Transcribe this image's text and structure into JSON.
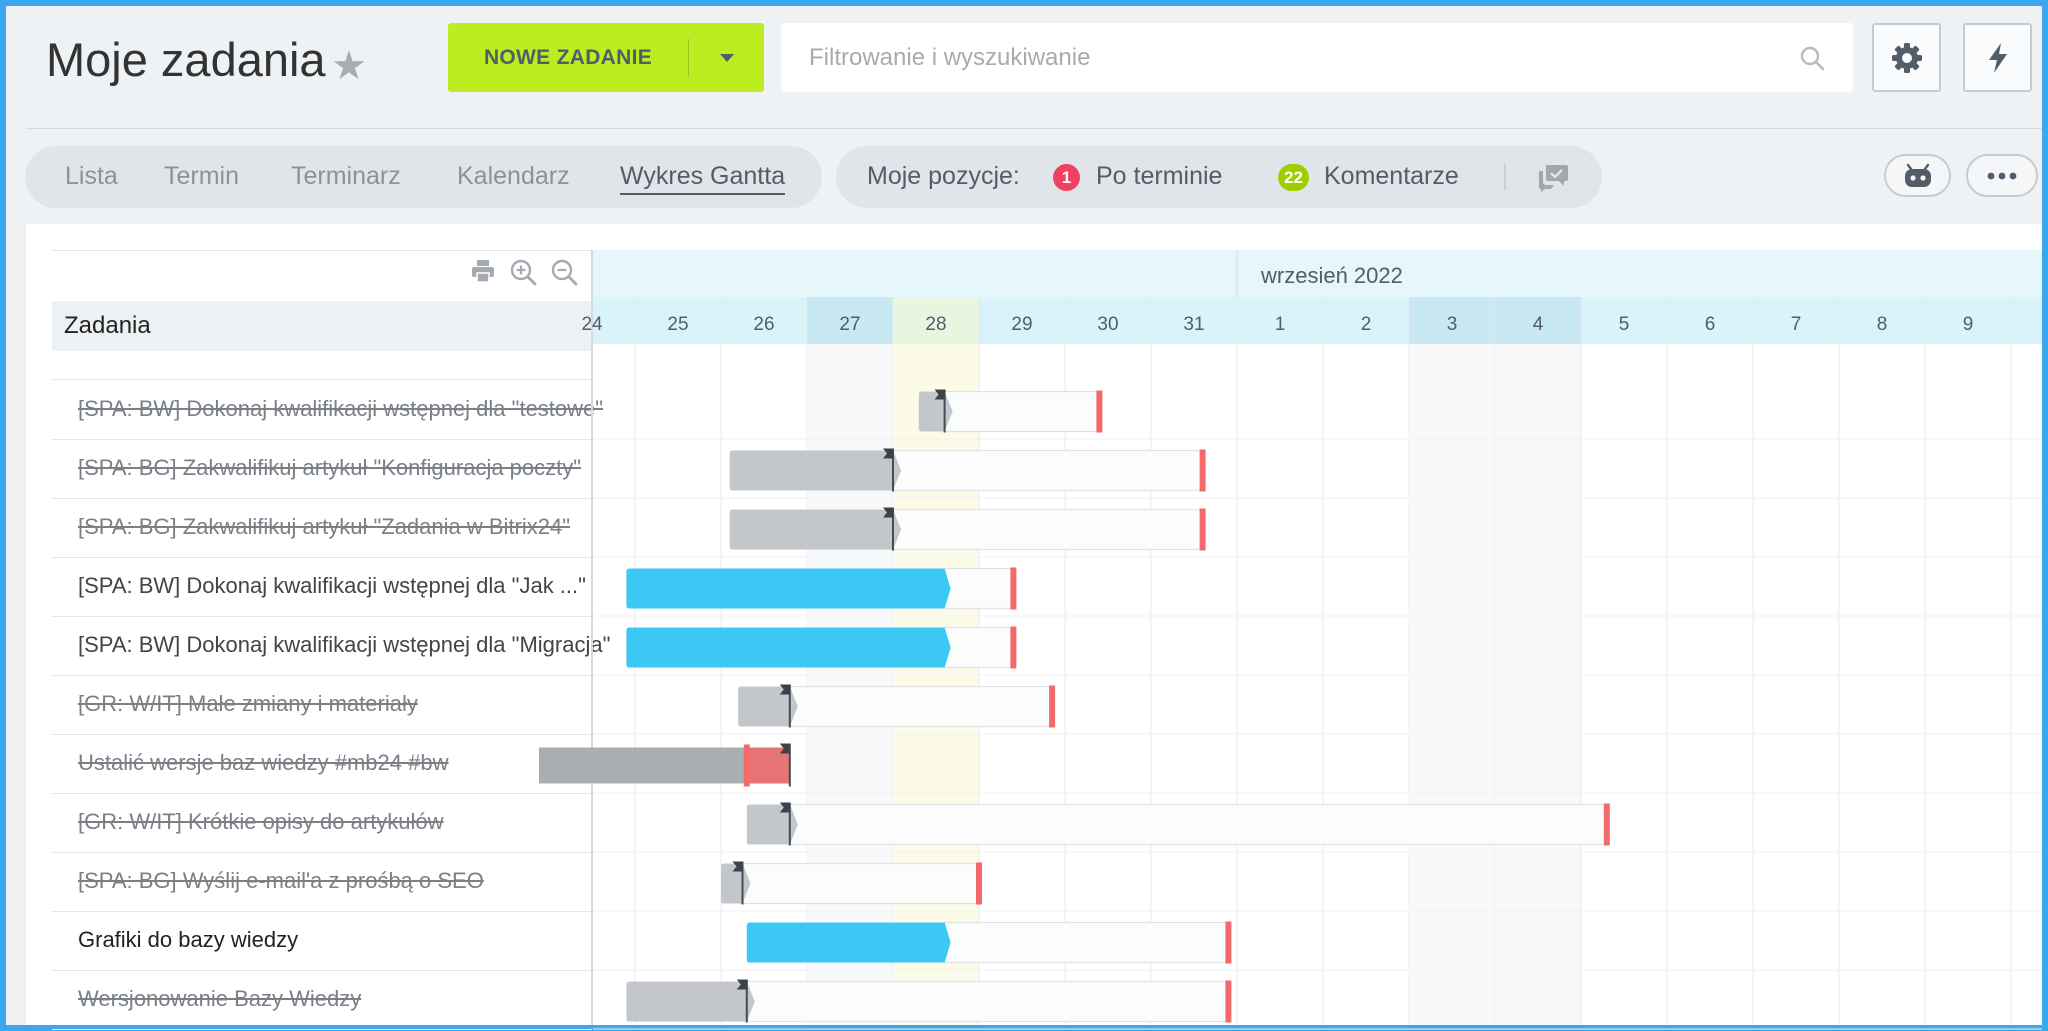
{
  "header": {
    "title": "Moje zadania",
    "new_task_label": "NOWE ZADANIE",
    "search_placeholder": "Filtrowanie i wyszukiwanie"
  },
  "views": {
    "tabs": [
      {
        "label": "Lista",
        "active": false
      },
      {
        "label": "Termin",
        "active": false
      },
      {
        "label": "Terminarz",
        "active": false
      },
      {
        "label": "Kalendarz",
        "active": false
      },
      {
        "label": "Wykres Gantta",
        "active": true
      }
    ]
  },
  "counters": {
    "label": "Moje pozycje:",
    "overdue": {
      "count": "1",
      "label": "Po terminie",
      "color": "#f0415e"
    },
    "comments": {
      "count": "22",
      "label": "Komentarze",
      "color": "#9dcf00"
    }
  },
  "gantt": {
    "column_header": "Zadania",
    "month_label": "wrzesień 2022",
    "days": [
      "24",
      "25",
      "26",
      "27",
      "28",
      "29",
      "30",
      "31",
      "1",
      "2",
      "3",
      "4",
      "5",
      "6",
      "7",
      "8",
      "9"
    ],
    "weekend_days": [
      "27",
      "3",
      "4"
    ],
    "today": "28",
    "colors": {
      "completed_bar": "#c3c7cb",
      "active_bar": "#3bc8f5",
      "deadline": "#f26a6a",
      "header_bg": "#d9f3fb",
      "month_bg": "#e6f7fc",
      "today_bg": "#fcfbe8"
    },
    "tasks": [
      {
        "title": "[SPA: BW] Dokonaj kwalifikacji wstępnej dla \"testowe\"",
        "status": "completed",
        "start_day": 28.3,
        "end_day": 28.6,
        "deadline_day": 30.4
      },
      {
        "title": "[SPA: BG] Zakwalifikuj artykuł \"Konfiguracja poczty\"",
        "status": "completed",
        "start_day": 26.1,
        "end_day": 28.0,
        "deadline_day": 31.6
      },
      {
        "title": "[SPA: BG] Zakwalifikuj artykuł \"Zadania w Bitrix24\"",
        "status": "completed",
        "start_day": 26.1,
        "end_day": 28.0,
        "deadline_day": 31.6
      },
      {
        "title": "[SPA: BW] Dokonaj kwalifikacji wstępnej dla \"Jak ...\"",
        "status": "in_progress",
        "start_day": 24.9,
        "end_day": 28.6,
        "deadline_day": 29.4
      },
      {
        "title": "[SPA: BW] Dokonaj kwalifikacji wstępnej dla \"Migracja\"",
        "status": "in_progress",
        "start_day": 24.9,
        "end_day": 28.6,
        "deadline_day": 29.4
      },
      {
        "title": "[GR: W/IT] Małe zmiany i materiały",
        "status": "completed",
        "start_day": 26.2,
        "end_day": 26.8,
        "deadline_day": 29.85
      },
      {
        "title": "Ustalić wersje baz wiedzy #mb24 #bw",
        "status": "overdue",
        "start_day": 24.0,
        "end_day": 26.8,
        "deadline_day": 26.3
      },
      {
        "title": "[GR: W/IT] Krótkie opisy do artykułów",
        "status": "completed",
        "start_day": 26.3,
        "end_day": 26.8,
        "deadline_day": 5.3
      },
      {
        "title": "[SPA: BG] Wyślij e-mail'a z prośbą o SEO",
        "status": "completed",
        "start_day": 26.0,
        "end_day": 26.25,
        "deadline_day": 29.0
      },
      {
        "title": "Grafiki do bazy wiedzy",
        "status": "in_progress",
        "start_day": 26.3,
        "end_day": 28.6,
        "deadline_day": 31.9
      },
      {
        "title": "Wersjonowanie Bazy Wiedzy",
        "status": "completed",
        "start_day": 24.9,
        "end_day": 26.3,
        "deadline_day": 31.9
      }
    ]
  }
}
